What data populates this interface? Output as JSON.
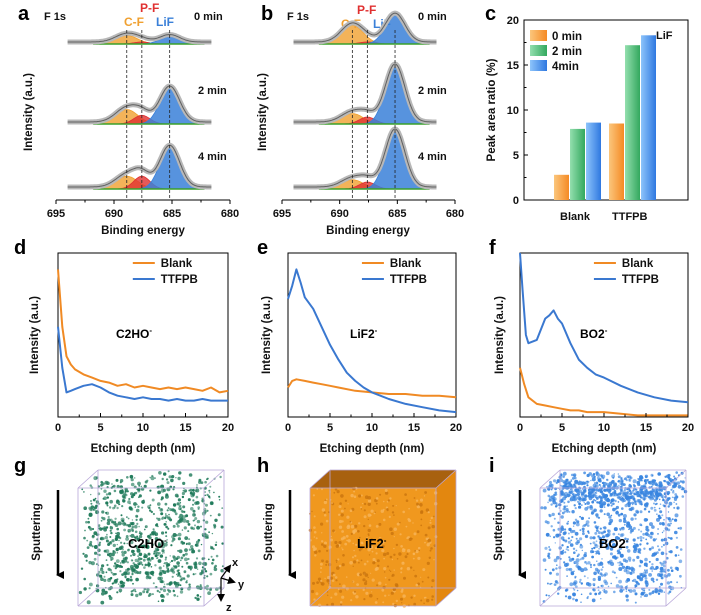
{
  "panels": {
    "a": {
      "letter": "a"
    },
    "b": {
      "letter": "b"
    },
    "c": {
      "letter": "c"
    },
    "d": {
      "letter": "d"
    },
    "e": {
      "letter": "e"
    },
    "f": {
      "letter": "f"
    },
    "g": {
      "letter": "g"
    },
    "h": {
      "letter": "h"
    },
    "i": {
      "letter": "i"
    }
  },
  "xps": {
    "element_label": "F 1s",
    "peak_labels": {
      "cf": "C-F",
      "pf": "P-F",
      "lif": "LiF"
    },
    "times": [
      "0 min",
      "2 min",
      "4 min"
    ],
    "xlabel": "Binding energy",
    "ylabel": "Intensity (a.u.)",
    "xticks": [
      "695",
      "690",
      "685",
      "680"
    ],
    "colors": {
      "cf": "#f0a030",
      "pf": "#e03030",
      "lif": "#3a80d8",
      "baseline": "#3aa02a",
      "raw": "#b8b8b8",
      "fit": "#606060"
    }
  },
  "chart_data": [
    {
      "type": "line",
      "id": "a",
      "title": "F 1s",
      "xlabel": "Binding energy",
      "ylabel": "Intensity (a.u.)",
      "xlim": [
        695,
        680
      ],
      "components": [
        {
          "name": "C-F",
          "center": 688.9
        },
        {
          "name": "P-F",
          "center": 687.6
        },
        {
          "name": "LiF",
          "center": 685.2
        }
      ],
      "series": [
        {
          "name": "0 min",
          "amplitudes": {
            "C-F": 0.25,
            "P-F": 0.06,
            "LiF": 0.22
          }
        },
        {
          "name": "2 min",
          "amplitudes": {
            "C-F": 0.25,
            "P-F": 0.15,
            "LiF": 0.62
          }
        },
        {
          "name": "4 min",
          "amplitudes": {
            "C-F": 0.22,
            "P-F": 0.22,
            "LiF": 0.72
          }
        }
      ]
    },
    {
      "type": "line",
      "id": "b",
      "title": "F 1s",
      "xlabel": "Binding energy",
      "ylabel": "Intensity (a.u.)",
      "xlim": [
        695,
        680
      ],
      "components": [
        {
          "name": "C-F",
          "center": 688.9
        },
        {
          "name": "P-F",
          "center": 687.6
        },
        {
          "name": "LiF",
          "center": 685.2
        }
      ],
      "series": [
        {
          "name": "0 min",
          "amplitudes": {
            "C-F": 0.55,
            "P-F": 0.06,
            "LiF": 0.85
          }
        },
        {
          "name": "2 min",
          "amplitudes": {
            "C-F": 0.18,
            "P-F": 0.12,
            "LiF": 1.0
          }
        },
        {
          "name": "4 min",
          "amplitudes": {
            "C-F": 0.16,
            "P-F": 0.12,
            "LiF": 1.0
          }
        }
      ]
    },
    {
      "type": "bar",
      "id": "c",
      "title": "LiF",
      "ylabel": "Peak area ratio (%)",
      "ylim": [
        0,
        20
      ],
      "yticks": [
        "0",
        "5",
        "10",
        "15",
        "20"
      ],
      "categories": [
        "Blank",
        "TTFPB"
      ],
      "series": [
        {
          "name": "0 min",
          "values": [
            2.8,
            8.5
          ],
          "color": "#f5a04a"
        },
        {
          "name": "2 min",
          "values": [
            7.9,
            17.2
          ],
          "color": "#4cb870"
        },
        {
          "name": "4min",
          "values": [
            8.6,
            18.3
          ],
          "color": "#3f8fe8"
        }
      ]
    },
    {
      "type": "line",
      "id": "d",
      "title": "C2HO-",
      "xlabel": "Etching depth (nm)",
      "ylabel": "Intensity (a.u.)",
      "xlim": [
        0,
        20
      ],
      "ylim": [
        0,
        1
      ],
      "xticks": [
        "0",
        "5",
        "10",
        "15",
        "20"
      ],
      "series": [
        {
          "name": "Blank",
          "color": "#f08a24",
          "x": [
            0,
            0.5,
            1,
            1.5,
            2,
            3,
            4,
            5,
            6,
            7,
            8,
            9,
            10,
            11,
            12,
            13,
            14,
            15,
            16,
            17,
            18,
            19,
            20
          ],
          "y": [
            0.9,
            0.55,
            0.37,
            0.32,
            0.29,
            0.26,
            0.24,
            0.22,
            0.21,
            0.19,
            0.2,
            0.18,
            0.19,
            0.18,
            0.17,
            0.18,
            0.17,
            0.18,
            0.17,
            0.16,
            0.18,
            0.15,
            0.16
          ]
        },
        {
          "name": "TTFPB",
          "color": "#3a78d0",
          "x": [
            0,
            0.5,
            1,
            1.5,
            2,
            3,
            4,
            5,
            6,
            7,
            8,
            9,
            10,
            11,
            12,
            13,
            14,
            15,
            16,
            17,
            18,
            19,
            20
          ],
          "y": [
            0.55,
            0.3,
            0.15,
            0.16,
            0.17,
            0.19,
            0.2,
            0.18,
            0.15,
            0.13,
            0.12,
            0.11,
            0.12,
            0.11,
            0.11,
            0.1,
            0.11,
            0.1,
            0.1,
            0.11,
            0.1,
            0.1,
            0.1
          ]
        }
      ]
    },
    {
      "type": "line",
      "id": "e",
      "title": "LiF2-",
      "xlabel": "Etching depth (nm)",
      "ylabel": "Intensity (a.u.)",
      "xlim": [
        0,
        20
      ],
      "ylim": [
        0,
        1
      ],
      "xticks": [
        "0",
        "5",
        "10",
        "15",
        "20"
      ],
      "series": [
        {
          "name": "Blank",
          "color": "#f08a24",
          "x": [
            0,
            0.5,
            1,
            2,
            3,
            4,
            5,
            6,
            8,
            10,
            12,
            14,
            16,
            18,
            20
          ],
          "y": [
            0.18,
            0.22,
            0.23,
            0.22,
            0.21,
            0.2,
            0.19,
            0.18,
            0.16,
            0.15,
            0.14,
            0.14,
            0.13,
            0.13,
            0.12
          ]
        },
        {
          "name": "TTFPB",
          "color": "#3a78d0",
          "x": [
            0,
            0.5,
            1,
            1.5,
            2,
            3,
            4,
            5,
            6,
            7,
            8,
            9,
            10,
            12,
            14,
            16,
            18,
            20
          ],
          "y": [
            0.72,
            0.8,
            0.9,
            0.82,
            0.73,
            0.66,
            0.55,
            0.44,
            0.35,
            0.27,
            0.22,
            0.18,
            0.15,
            0.11,
            0.08,
            0.06,
            0.04,
            0.03
          ]
        }
      ]
    },
    {
      "type": "line",
      "id": "f",
      "title": "BO2-",
      "xlabel": "Etching depth (nm)",
      "ylabel": "Intensity (a.u.)",
      "xlim": [
        0,
        20
      ],
      "ylim": [
        0,
        1
      ],
      "xticks": [
        "0",
        "5",
        "10",
        "15",
        "20"
      ],
      "series": [
        {
          "name": "Blank",
          "color": "#f08a24",
          "x": [
            0,
            0.5,
            1,
            2,
            3,
            4,
            5,
            6,
            7,
            8,
            9,
            10,
            12,
            14,
            16,
            18,
            20
          ],
          "y": [
            0.3,
            0.2,
            0.12,
            0.08,
            0.07,
            0.06,
            0.05,
            0.04,
            0.04,
            0.03,
            0.03,
            0.03,
            0.02,
            0.01,
            0.01,
            0.01,
            0.01
          ]
        },
        {
          "name": "TTFPB",
          "color": "#3a78d0",
          "x": [
            0,
            0.3,
            0.7,
            1,
            2,
            3,
            3.5,
            4,
            4.5,
            5,
            6,
            7,
            8,
            9,
            10,
            12,
            14,
            16,
            18,
            20
          ],
          "y": [
            1.0,
            0.78,
            0.5,
            0.45,
            0.47,
            0.6,
            0.62,
            0.65,
            0.6,
            0.57,
            0.45,
            0.35,
            0.3,
            0.26,
            0.24,
            0.19,
            0.15,
            0.12,
            0.1,
            0.09
          ]
        }
      ]
    }
  ],
  "tof": {
    "xlabel": "Etching depth (nm)",
    "ylabel": "Intensity (a.u.)",
    "legend": [
      "Blank",
      "TTFPB"
    ],
    "xticks": [
      "0",
      "5",
      "10",
      "15",
      "20"
    ],
    "species": {
      "d": "C2HO",
      "e": "LiF2",
      "f": "BO2"
    }
  },
  "recon3d": {
    "sputtering_label": "Sputtering",
    "axis_labels": {
      "x": "x",
      "y": "y",
      "z": "z"
    },
    "species": {
      "g": "C2HO",
      "h": "LiF2",
      "i": "BO2"
    },
    "colors": {
      "g": "#1f7a5a",
      "h": "#f0981e",
      "i": "#3a86e0"
    }
  }
}
